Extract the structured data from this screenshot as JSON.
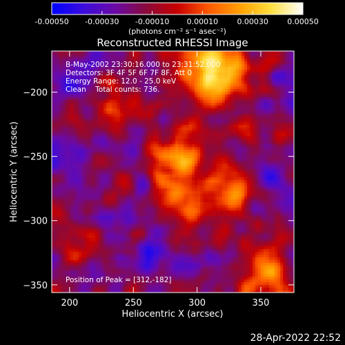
{
  "chart_data": {
    "type": "heatmap",
    "title": "Reconstructed RHESSI Image",
    "xlabel": "Heliocentric X (arcsec)",
    "ylabel": "Heliocentric Y (arcsec)",
    "xlim": [
      186,
      376
    ],
    "ylim": [
      -356,
      -168
    ],
    "xticks": [
      200,
      250,
      300,
      350
    ],
    "yticks": [
      -200,
      -250,
      -300,
      -350
    ],
    "colorbar": {
      "range": [
        -0.0005,
        0.0005
      ],
      "ticks": [
        -0.0005,
        -0.0003,
        -0.0001,
        0.0001,
        0.0003,
        0.0005
      ],
      "tick_labels": [
        "-0.00050",
        "-0.00030",
        "-0.00010",
        "0.00010",
        "0.00030",
        "0.00050"
      ],
      "unit_label": "(photons cm⁻² s⁻¹ asec⁻²)",
      "colormap": [
        "#0000ff",
        "#3c0cdc",
        "#6a0aa8",
        "#8a0a3c",
        "#c80000",
        "#ff5a00",
        "#ffa000",
        "#ffe040",
        "#ffffff"
      ]
    },
    "annotations": [
      "B-May-2002 23:30:16.000 to 23:31:52.000",
      "Detectors: 3F 4F 5F 6F 7F 8F, Att 0",
      "Energy Range: 12.0 - 25.0 keV",
      "Clean    Total counts: 736.",
      "Position of Peak = [312,-182]"
    ],
    "peak_position": [
      312,
      -182
    ],
    "grid": false
  },
  "footer": {
    "timestamp": "28-Apr-2022 22:52"
  }
}
